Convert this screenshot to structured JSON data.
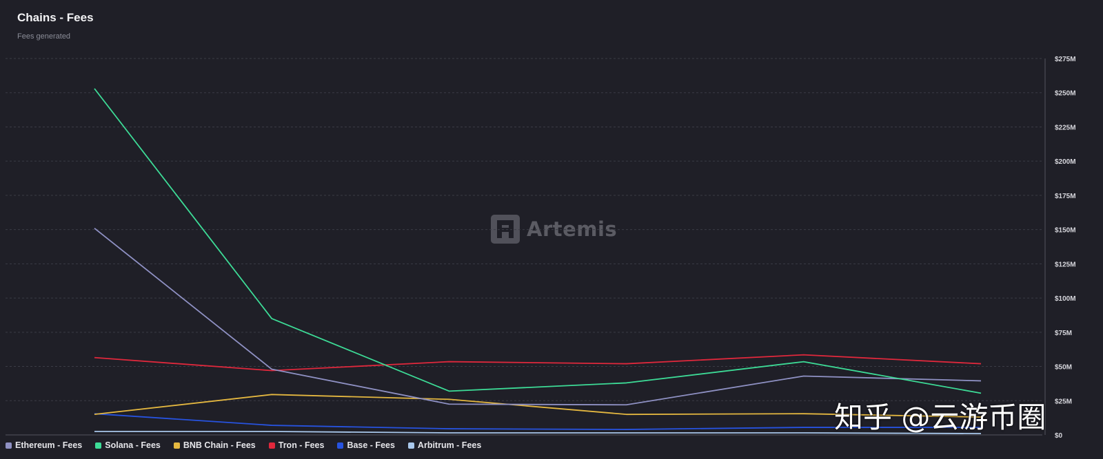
{
  "chart_data": {
    "type": "line",
    "title": "Chains - Fees",
    "subtitle": "Fees generated",
    "x": [
      1,
      2,
      3,
      4,
      5,
      6
    ],
    "y_ticks": [
      "$0",
      "$25M",
      "$50M",
      "$75M",
      "$100M",
      "$125M",
      "$150M",
      "$175M",
      "$200M",
      "$225M",
      "$250M",
      "$275M"
    ],
    "ylim": [
      0,
      275
    ],
    "grid": true,
    "legend_position": "bottom-left",
    "series": [
      {
        "name": "Ethereum - Fees",
        "color": "#8f91c4",
        "values": [
          151,
          48,
          22.5,
          22,
          43,
          39.5
        ]
      },
      {
        "name": "Solana - Fees",
        "color": "#3ddc97",
        "values": [
          253,
          85,
          32,
          38,
          53.5,
          30.5
        ]
      },
      {
        "name": "BNB Chain - Fees",
        "color": "#e5b840",
        "values": [
          15,
          29.5,
          26,
          15,
          15.5,
          13
        ]
      },
      {
        "name": "Tron - Fees",
        "color": "#e0283c",
        "values": [
          56.5,
          47,
          53.5,
          52,
          58.5,
          52
        ]
      },
      {
        "name": "Base - Fees",
        "color": "#2753e0",
        "values": [
          15.5,
          7,
          4.5,
          4,
          5.5,
          5.5
        ]
      },
      {
        "name": "Arbitrum - Fees",
        "color": "#a9c8ec",
        "values": [
          2.5,
          2.5,
          1.5,
          1.5,
          1.5,
          1
        ]
      }
    ]
  },
  "watermark": {
    "brand": "Artemis"
  },
  "overlay": {
    "text": "知乎 @云游币圈"
  }
}
